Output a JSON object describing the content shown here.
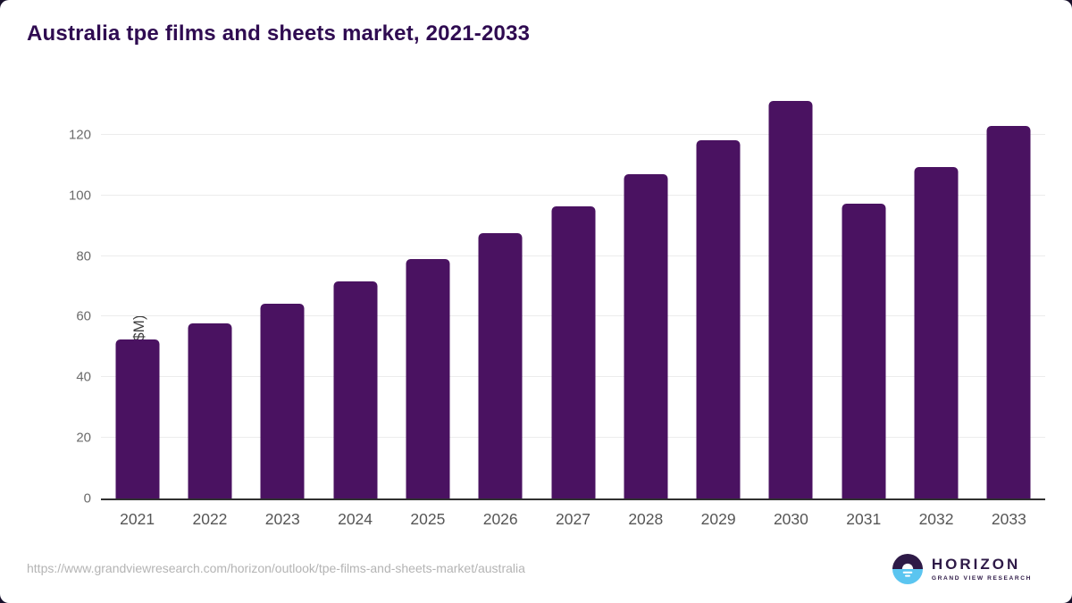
{
  "header": {
    "title": "Australia tpe films and sheets market, 2021-2033",
    "title_color": "#2f0b51"
  },
  "chart_data": {
    "type": "bar",
    "title": "Australia tpe films and sheets market, 2021-2033",
    "categories": [
      "2021",
      "2022",
      "2023",
      "2024",
      "2025",
      "2026",
      "2027",
      "2028",
      "2029",
      "2030",
      "2031",
      "2032",
      "2033"
    ],
    "values": [
      52.4,
      57.9,
      64.4,
      71.5,
      79.0,
      87.5,
      96.4,
      107.1,
      118.3,
      131.1,
      97.4,
      109.4,
      123.0
    ],
    "xlabel": "",
    "ylabel": "Market Size (US$M)",
    "ylim": [
      0,
      135
    ],
    "yticks": [
      0,
      20,
      40,
      60,
      80,
      100,
      120
    ],
    "grid": "horizontal-only",
    "legend": "none",
    "bar_color": "#4a1261",
    "axis_line_color": "#303030",
    "gridline_color": "#ececec",
    "ytick_color": "#6b6b6b",
    "xtick_color": "#565656"
  },
  "footer": {
    "source_url": "https://www.grandviewresearch.com/horizon/outlook/tpe-films-and-sheets-market/australia",
    "logo": {
      "brand": "HORIZON",
      "subbrand": "GRAND VIEW RESEARCH",
      "circle_top_color": "#2e1a47",
      "circle_bottom_color": "#5bc5f0",
      "text_color": "#2e1a47"
    }
  }
}
